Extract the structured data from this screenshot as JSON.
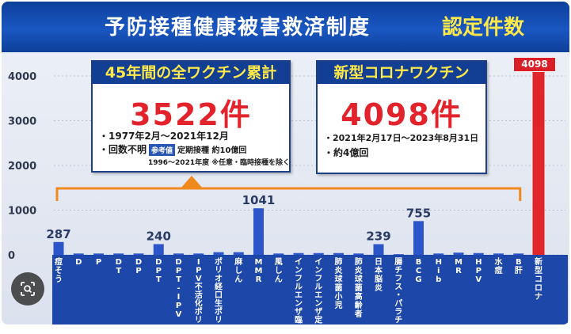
{
  "banner": {
    "title": "予防接種健康被害救済制度",
    "subtitle": "認定件数"
  },
  "callout_all": {
    "heading": "45年間の全ワクチン累計",
    "total": "3522件",
    "line1": "・1977年2月～2021年12月",
    "line2": "・回数不明",
    "note_tag": "参考値",
    "note_text": "定期接種 約10億回",
    "line3": "1996～2021年度 ※任意・臨時接種を除く"
  },
  "callout_covid": {
    "heading": "新型コロナワクチン",
    "total": "4098件",
    "line1": "・2021年2月17日～2023年8月31日",
    "line2": "・約4億回"
  },
  "colors": {
    "banner": "#1a57c2",
    "bar": "#2b55c8",
    "covid_bar": "#e0262c",
    "label_band": "#1d47a8",
    "bracket": "#f08a1c",
    "callout_total": "#e3232b"
  },
  "chart_data": {
    "type": "bar",
    "title": "予防接種健康被害救済制度 認定件数",
    "ylim": [
      0,
      4000
    ],
    "y_ticks": [
      "0",
      "1000",
      "2000",
      "3000",
      "4000"
    ],
    "grid": true,
    "categories": [
      "痘そう",
      "D",
      "P",
      "DT",
      "DP",
      "DPT",
      "DPT-IPV",
      "IPV 不活化ポリオ",
      "ポリオ 経口生ポリオ",
      "麻しん",
      "MMR",
      "風しん",
      "インフルエンザ 臨時",
      "インフルエンザ 定期",
      "肺炎球菌 小児",
      "肺炎球菌 高齢者",
      "日本脳炎",
      "腸チフス・パラチフス",
      "BCG",
      "Hib",
      "MR",
      "HPV",
      "水痘",
      "B肝",
      "新型コロナ"
    ],
    "values": [
      287,
      30,
      30,
      30,
      30,
      240,
      30,
      30,
      60,
      60,
      1041,
      30,
      40,
      40,
      40,
      30,
      239,
      15,
      755,
      30,
      50,
      40,
      30,
      30,
      4098
    ],
    "value_labels": [
      "287",
      "",
      "",
      "",
      "",
      "240",
      "",
      "",
      "",
      "",
      "1041",
      "",
      "",
      "",
      "",
      "",
      "239",
      "",
      "755",
      "",
      "",
      "",
      "",
      "",
      "4098"
    ]
  }
}
